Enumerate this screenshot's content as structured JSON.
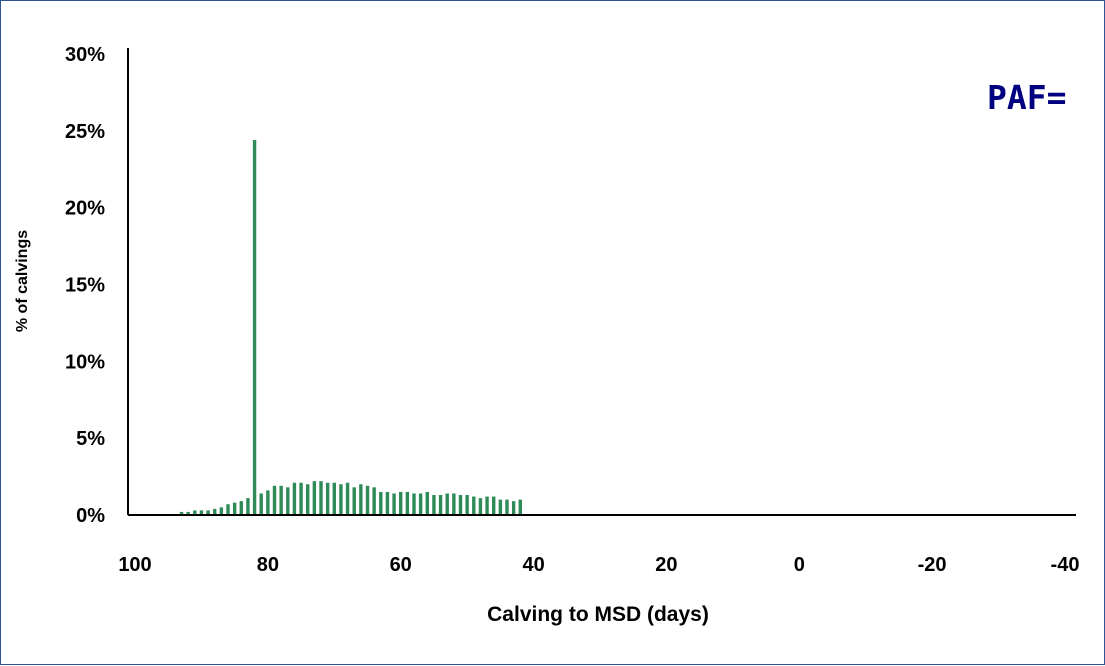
{
  "annotation": "PAF=",
  "chart_data": {
    "type": "bar",
    "title": "",
    "xlabel": "Calving to MSD (days)",
    "ylabel": "% of calvings",
    "xlim": [
      100,
      -40
    ],
    "ylim": [
      0,
      0.3
    ],
    "x_ticks": [
      100,
      80,
      60,
      40,
      20,
      0,
      -20,
      -40
    ],
    "x_tick_labels": [
      "100",
      "80",
      "60",
      "40",
      "20",
      "0",
      "-20",
      "-40"
    ],
    "y_ticks": [
      0,
      0.05,
      0.1,
      0.15,
      0.2,
      0.25,
      0.3
    ],
    "y_tick_labels": [
      "0%",
      "5%",
      "10%",
      "15%",
      "20%",
      "25%",
      "30%"
    ],
    "grid": false,
    "legend": "none",
    "bar_color": "#2e8b57",
    "x": [
      93,
      92,
      91,
      90,
      89,
      88,
      87,
      86,
      85,
      84,
      83,
      82,
      81,
      80,
      79,
      78,
      77,
      76,
      75,
      74,
      73,
      72,
      71,
      70,
      69,
      68,
      67,
      66,
      65,
      64,
      63,
      62,
      61,
      60,
      59,
      58,
      57,
      56,
      55,
      54,
      53,
      52,
      51,
      50,
      49,
      48,
      47,
      46,
      45,
      44,
      43,
      42
    ],
    "values": [
      0.002,
      0.002,
      0.003,
      0.003,
      0.003,
      0.004,
      0.005,
      0.007,
      0.008,
      0.009,
      0.011,
      0.244,
      0.014,
      0.016,
      0.019,
      0.019,
      0.018,
      0.021,
      0.021,
      0.02,
      0.022,
      0.022,
      0.021,
      0.021,
      0.02,
      0.021,
      0.018,
      0.02,
      0.019,
      0.018,
      0.015,
      0.015,
      0.014,
      0.015,
      0.015,
      0.014,
      0.014,
      0.015,
      0.013,
      0.013,
      0.014,
      0.014,
      0.013,
      0.013,
      0.012,
      0.011,
      0.012,
      0.012,
      0.01,
      0.01,
      0.009,
      0.01
    ]
  }
}
